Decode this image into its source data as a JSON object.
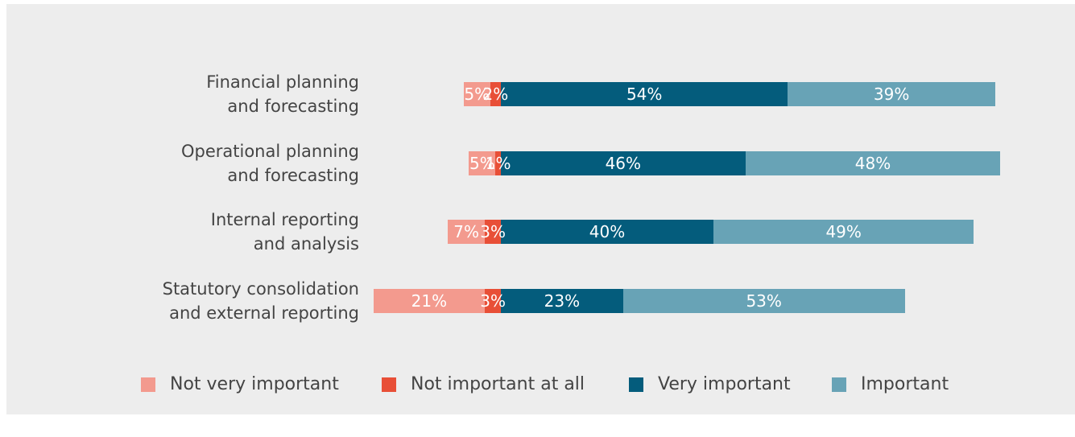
{
  "chart_data": {
    "type": "diverging-bar",
    "categories": [
      "Financial planning\nand forecasting",
      "Operational planning\nand forecasting",
      "Internal reporting\nand analysis",
      "Statutory consolidation\nand external reporting"
    ],
    "series": [
      {
        "name": "Not very important",
        "color": "#f39a8e",
        "side": "left",
        "values": [
          5,
          5,
          7,
          21
        ],
        "value_labels": [
          "5%",
          "5%",
          "7%",
          "21%"
        ]
      },
      {
        "name": "Not important at all",
        "color": "#e84f37",
        "side": "left",
        "values": [
          2,
          1,
          3,
          3
        ],
        "value_labels": [
          "2%",
          "1%",
          "3%",
          "3%"
        ]
      },
      {
        "name": "Very important",
        "color": "#045c7c",
        "side": "right",
        "values": [
          54,
          46,
          40,
          23
        ],
        "value_labels": [
          "54%",
          "46%",
          "40%",
          "23%"
        ]
      },
      {
        "name": "Important",
        "color": "#68a3b6",
        "side": "right",
        "values": [
          39,
          48,
          49,
          53
        ],
        "value_labels": [
          "39%",
          "48%",
          "49%",
          "53%"
        ]
      }
    ]
  }
}
